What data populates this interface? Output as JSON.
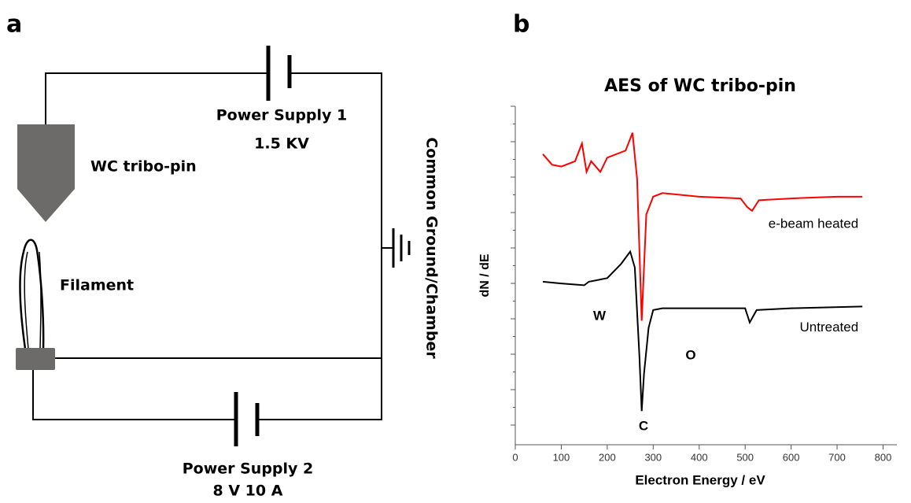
{
  "panel_a": {
    "label": "a",
    "power_supply_1": {
      "name": "Power Supply 1",
      "rating": "1.5 KV"
    },
    "pin": "WC tribo-pin",
    "filament": "Filament",
    "ground": "Common Ground/Chamber",
    "power_supply_2": {
      "name": "Power Supply 2",
      "rating": "8 V 10 A"
    }
  },
  "panel_b_label": "b",
  "chart_data": {
    "type": "line",
    "title": "AES of WC tribo-pin",
    "x_label": "Electron Energy / eV",
    "y_label": "dN / dE",
    "xlim": [
      0,
      830
    ],
    "xticks": [
      0,
      100,
      200,
      300,
      400,
      500,
      600,
      700,
      800
    ],
    "ylim": [
      0,
      9.55
    ],
    "annotations": [
      "W",
      "C",
      "O"
    ],
    "series": [
      {
        "name": "e-beam heated",
        "color": "#ff0000",
        "x": [
          60,
          80,
          100,
          130,
          145,
          155,
          165,
          185,
          200,
          240,
          255,
          265,
          275,
          285,
          300,
          320,
          400,
          490,
          505,
          515,
          530,
          600,
          700,
          755
        ],
        "values": [
          8.2,
          7.9,
          7.85,
          8.0,
          8.5,
          7.7,
          8.0,
          7.7,
          8.1,
          8.3,
          8.8,
          7.5,
          3.5,
          6.5,
          7.0,
          7.1,
          7.0,
          6.95,
          6.7,
          6.6,
          6.9,
          6.95,
          7.0,
          7.0
        ]
      },
      {
        "name": "Untreated",
        "color": "#000000",
        "x": [
          60,
          100,
          150,
          160,
          200,
          230,
          250,
          260,
          270,
          275,
          280,
          290,
          300,
          320,
          400,
          500,
          510,
          525,
          600,
          755
        ],
        "values": [
          4.6,
          4.55,
          4.5,
          4.6,
          4.7,
          5.1,
          5.45,
          5.0,
          2.5,
          0.95,
          2.0,
          3.3,
          3.8,
          3.85,
          3.85,
          3.85,
          3.45,
          3.8,
          3.85,
          3.9
        ]
      }
    ]
  }
}
